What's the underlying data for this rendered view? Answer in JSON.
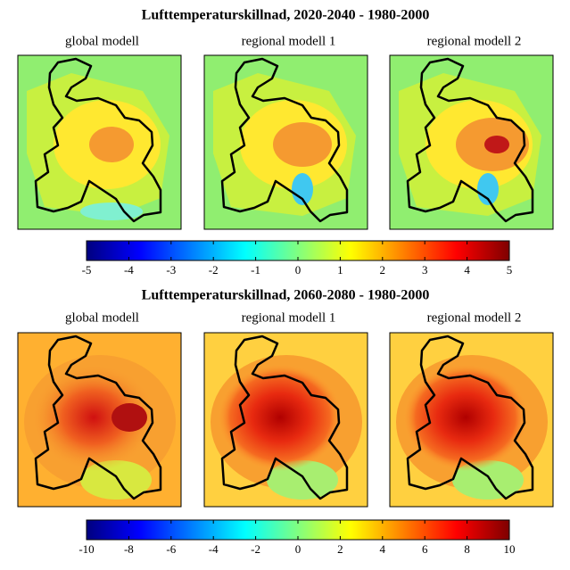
{
  "figures": [
    {
      "title": "Lufttemperaturskillnad, 2020-2040 - 1980-2000",
      "panels": [
        "global modell",
        "regional modell 1",
        "regional modell 2"
      ],
      "colorbar": {
        "lim": [
          -5,
          5
        ],
        "ticks": [
          -5,
          -4,
          -3,
          -2,
          -1,
          0,
          1,
          2,
          3,
          4,
          5
        ]
      }
    },
    {
      "title": "Lufttemperaturskillnad, 2060-2080 - 1980-2000",
      "panels": [
        "global modell",
        "regional modell 1",
        "regional modell 2"
      ],
      "colorbar": {
        "lim": [
          -10,
          10
        ],
        "ticks": [
          -10,
          -8,
          -6,
          -4,
          -2,
          0,
          2,
          4,
          6,
          8,
          10
        ]
      }
    }
  ]
}
